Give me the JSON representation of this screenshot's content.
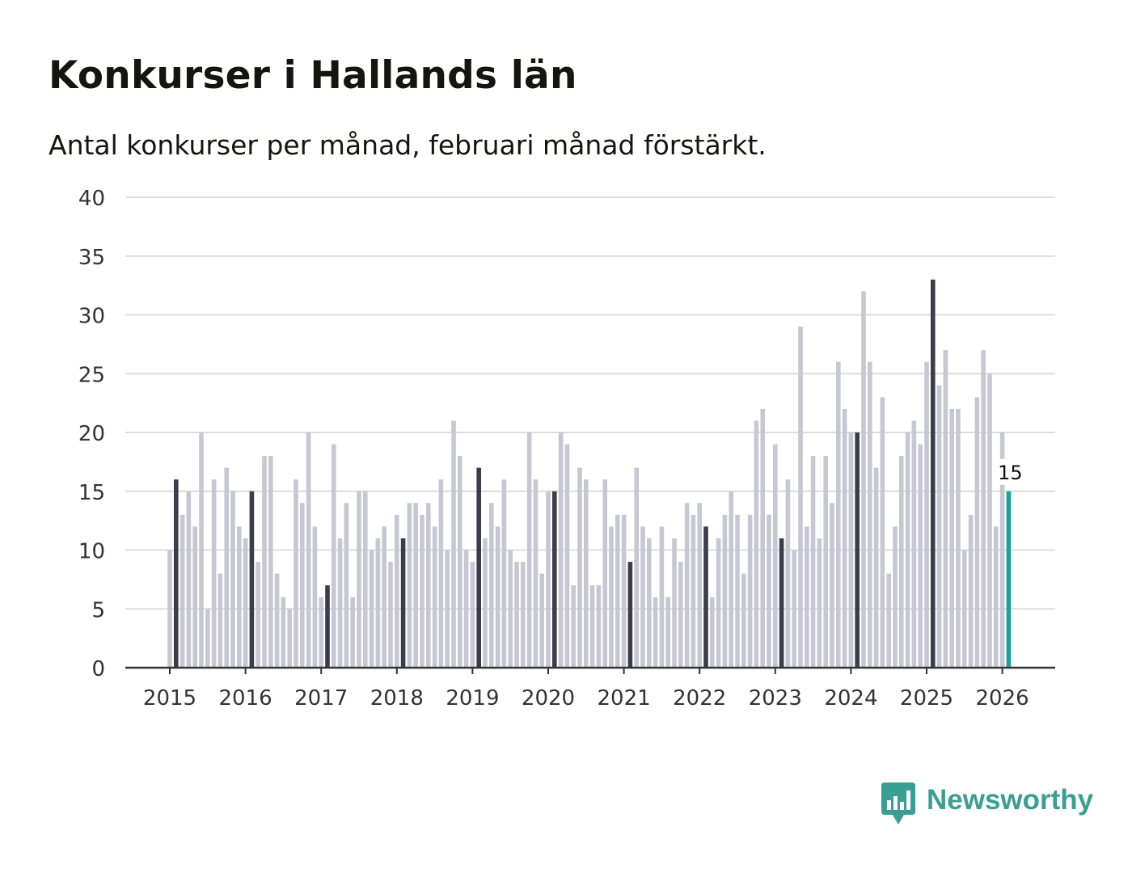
{
  "title": "Konkurser i Hallands län",
  "subtitle": "Antal konkurser per månad, februari månad förstärkt.",
  "brand": {
    "name": "Newsworthy",
    "icon": "newsworthy-logo-icon",
    "color": "#3a9e95"
  },
  "colors": {
    "normal": "#c7c7d4",
    "february": "#3d3c4d",
    "latest": "#1aa39a",
    "grid": "#dcdcdc",
    "axis": "#333333"
  },
  "chart_data": {
    "type": "bar",
    "title": "Konkurser i Hallands län",
    "subtitle": "Antal konkurser per månad, februari månad förstärkt.",
    "xlabel": "",
    "ylabel": "",
    "ylim": [
      0,
      40
    ],
    "yticks": [
      "0",
      "5",
      "10",
      "15",
      "20",
      "25",
      "30",
      "35",
      "40"
    ],
    "xticks": [
      "2015",
      "2016",
      "2017",
      "2018",
      "2019",
      "2020",
      "2021",
      "2022",
      "2023",
      "2024",
      "2025",
      "2026"
    ],
    "start": "2015-01",
    "highlight": "February",
    "latest_label": "15",
    "values": [
      10,
      16,
      13,
      15,
      12,
      20,
      5,
      16,
      8,
      17,
      15,
      12,
      11,
      15,
      9,
      18,
      18,
      8,
      6,
      5,
      16,
      14,
      20,
      12,
      6,
      7,
      19,
      11,
      14,
      6,
      15,
      15,
      10,
      11,
      12,
      9,
      13,
      11,
      14,
      14,
      13,
      14,
      12,
      16,
      10,
      21,
      18,
      10,
      9,
      17,
      11,
      14,
      12,
      16,
      10,
      9,
      9,
      20,
      16,
      8,
      15,
      15,
      20,
      19,
      7,
      17,
      16,
      7,
      7,
      16,
      12,
      13,
      13,
      9,
      17,
      12,
      11,
      6,
      12,
      6,
      11,
      9,
      14,
      13,
      14,
      12,
      6,
      11,
      13,
      15,
      13,
      8,
      13,
      21,
      22,
      13,
      19,
      11,
      16,
      10,
      29,
      12,
      18,
      11,
      18,
      14,
      26,
      22,
      20,
      20,
      32,
      26,
      17,
      23,
      8,
      12,
      18,
      20,
      21,
      19,
      26,
      33,
      24,
      27,
      22,
      22,
      10,
      13,
      23,
      27,
      25,
      12,
      20,
      15
    ]
  }
}
